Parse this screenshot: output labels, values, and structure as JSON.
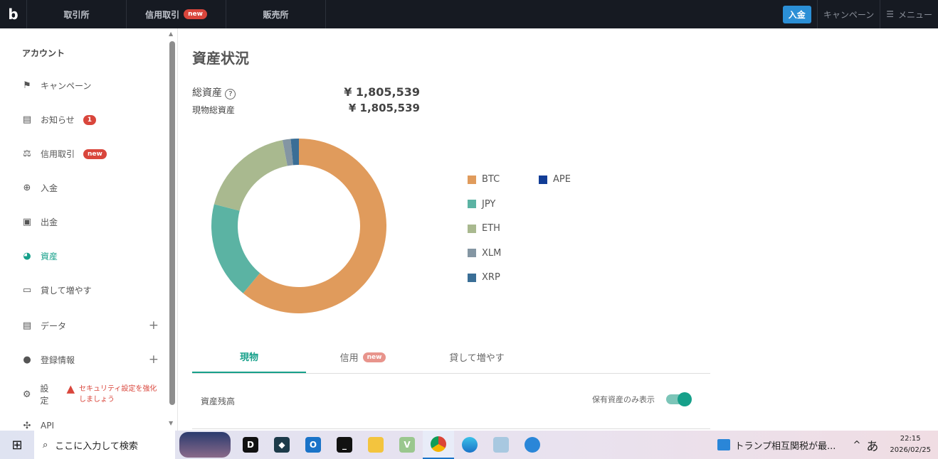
{
  "topbar": {
    "logo": "b",
    "nav": [
      {
        "label": "取引所"
      },
      {
        "label": "信用取引",
        "badge": "new"
      },
      {
        "label": "販売所"
      }
    ],
    "deposit": "入金",
    "campaign": "キャンペーン",
    "menu": "メニュー"
  },
  "sidebar": {
    "heading": "アカウント",
    "items": [
      {
        "label": "キャンペーン",
        "icon": "flag-icon"
      },
      {
        "label": "お知らせ",
        "icon": "message-icon",
        "badge": "1"
      },
      {
        "label": "信用取引",
        "icon": "scale-icon",
        "badge": "new"
      },
      {
        "label": "入金",
        "icon": "plus-circle-icon"
      },
      {
        "label": "出金",
        "icon": "wallet-icon"
      },
      {
        "label": "資産",
        "icon": "pie-icon",
        "active": true
      },
      {
        "label": "貸して増やす",
        "icon": "money-icon"
      },
      {
        "label": "データ",
        "icon": "clipboard-icon",
        "expand": "+"
      },
      {
        "label": "登録情報",
        "icon": "user-icon",
        "expand": "+"
      },
      {
        "label": "設定",
        "icon": "gear-icon",
        "warning": "セキュリティ設定を強化しましょう"
      },
      {
        "label": "API",
        "icon": "api-icon"
      }
    ]
  },
  "main": {
    "title": "資産状況",
    "total_label": "総資産",
    "total_value": "¥ 1,805,539",
    "spot_label": "現物総資産",
    "spot_value": "¥ 1,805,539",
    "tabs": [
      {
        "label": "現物"
      },
      {
        "label": "信用",
        "badge": "new"
      },
      {
        "label": "貸して増やす"
      }
    ],
    "balance_label": "資産残高",
    "toggle_label": "保有資産のみ表示",
    "toggle_on": true
  },
  "chart_data": {
    "type": "pie",
    "donut": true,
    "legend_placement": "right",
    "series": [
      {
        "name": "BTC",
        "value": 61,
        "color": "#e09b5c"
      },
      {
        "name": "JPY",
        "value": 18,
        "color": "#5bb3a3"
      },
      {
        "name": "ETH",
        "value": 18,
        "color": "#a9b98f"
      },
      {
        "name": "XLM",
        "value": 1.5,
        "color": "#8496a3"
      },
      {
        "name": "XRP",
        "value": 1.5,
        "color": "#3a6e96"
      },
      {
        "name": "APE",
        "value": 0,
        "color": "#123d96"
      }
    ]
  },
  "taskbar": {
    "search": "ここに入力して検索",
    "news": "トランプ相互関税が最...",
    "ime": "あ",
    "time": "22:15",
    "date": "2026/02/25"
  }
}
